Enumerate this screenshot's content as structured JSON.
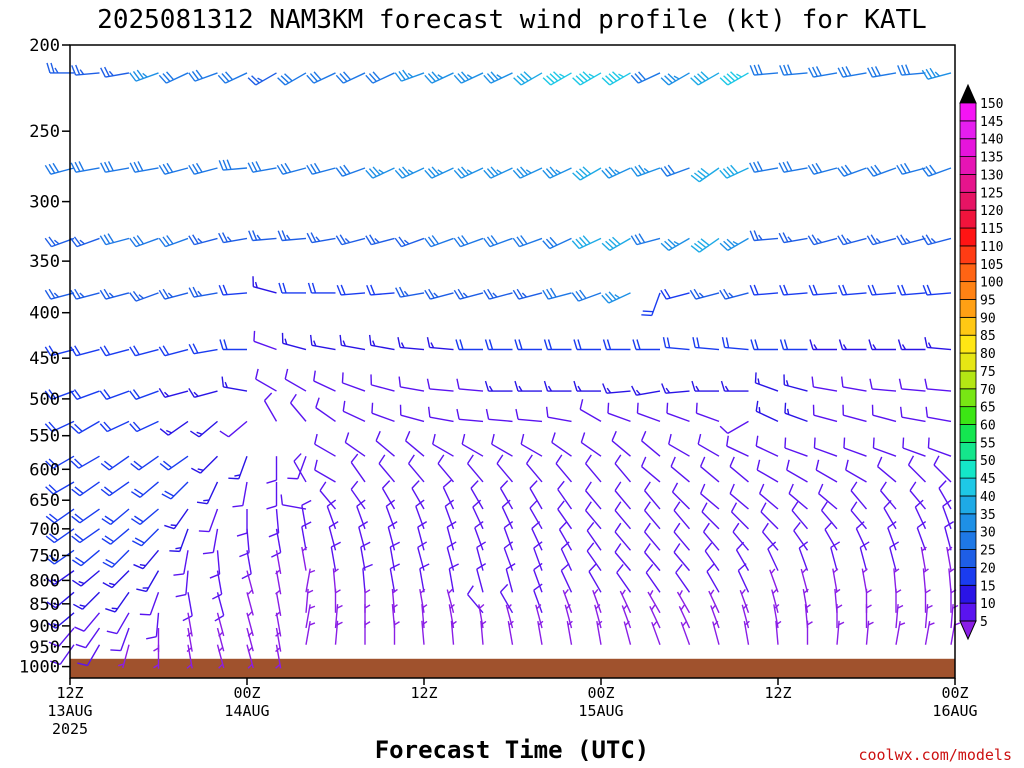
{
  "title": "2025081312 NAM3KM forecast wind profile (kt) for KATL",
  "credit": "coolwx.com/models",
  "chart_data": {
    "type": "wind-barb profile",
    "title": "2025081312 NAM3KM forecast wind profile (kt) for KATL",
    "xlabel": "Forecast Time (UTC)",
    "ylabel": "",
    "x_ticks": [
      {
        "hour": 0,
        "line1": "12Z",
        "line2": "13AUG",
        "line3": "2025"
      },
      {
        "hour": 12,
        "line1": "00Z",
        "line2": "14AUG",
        "line3": ""
      },
      {
        "hour": 24,
        "line1": "12Z",
        "line2": "",
        "line3": ""
      },
      {
        "hour": 36,
        "line1": "00Z",
        "line2": "15AUG",
        "line3": ""
      },
      {
        "hour": 48,
        "line1": "12Z",
        "line2": "",
        "line3": ""
      },
      {
        "hour": 60,
        "line1": "00Z",
        "line2": "16AUG",
        "line3": ""
      }
    ],
    "xlim_hours": [
      0,
      60
    ],
    "y_scale": "log",
    "ylim_hpa": [
      1030,
      200
    ],
    "y_ticks": [
      200,
      250,
      300,
      350,
      400,
      450,
      500,
      550,
      600,
      650,
      700,
      750,
      800,
      850,
      900,
      950,
      1000
    ],
    "ground_hpa": 980,
    "ground_color": "#a0522d",
    "colorbar": {
      "levels": [
        5,
        10,
        15,
        20,
        25,
        30,
        35,
        40,
        45,
        50,
        55,
        60,
        65,
        70,
        75,
        80,
        85,
        90,
        95,
        100,
        105,
        110,
        115,
        120,
        125,
        130,
        135,
        140,
        145,
        150
      ],
      "colors": [
        "#8a1ee6",
        "#5a14f0",
        "#2a14e6",
        "#1a3cf0",
        "#1e5ee6",
        "#1e78e6",
        "#1e90e6",
        "#1eaae6",
        "#1ec8e6",
        "#14e6c8",
        "#14e68c",
        "#14e650",
        "#3ce614",
        "#78e614",
        "#b4e614",
        "#e6e614",
        "#ffe614",
        "#ffc814",
        "#ffa014",
        "#ff8214",
        "#ff6414",
        "#ff3c14",
        "#ff1414",
        "#f0143c",
        "#e61464",
        "#e6148c",
        "#e614b4",
        "#e614dc",
        "#e61ef0",
        "#f514f5"
      ]
    },
    "profile_levels_hpa": [
      215,
      275,
      330,
      380,
      440,
      490,
      530,
      580,
      620,
      665,
      700,
      740,
      780,
      825,
      870,
      905,
      945
    ],
    "time_hours": [
      0,
      2,
      4,
      6,
      8,
      10,
      12,
      14,
      16,
      18,
      20,
      22,
      24,
      26,
      28,
      30,
      32,
      34,
      36,
      38,
      40,
      42,
      44,
      46,
      48,
      50,
      52,
      54,
      56,
      58,
      60
    ],
    "wind_speed_kt": [
      [
        25,
        25,
        25,
        35,
        30,
        30,
        30,
        25,
        30,
        30,
        30,
        30,
        35,
        35,
        35,
        35,
        40,
        45,
        45,
        45,
        30,
        35,
        40,
        45,
        30,
        30,
        30,
        30,
        30,
        30,
        35
      ],
      [
        30,
        30,
        30,
        30,
        30,
        30,
        30,
        30,
        30,
        30,
        30,
        35,
        35,
        35,
        35,
        35,
        35,
        35,
        40,
        35,
        35,
        30,
        40,
        40,
        30,
        30,
        30,
        30,
        30,
        30,
        30
      ],
      [
        25,
        25,
        30,
        30,
        30,
        25,
        25,
        25,
        25,
        25,
        25,
        25,
        25,
        30,
        30,
        30,
        30,
        30,
        40,
        40,
        30,
        35,
        40,
        35,
        25,
        25,
        25,
        25,
        25,
        25,
        25
      ],
      [
        25,
        25,
        25,
        25,
        25,
        25,
        20,
        15,
        20,
        20,
        20,
        20,
        25,
        25,
        25,
        25,
        25,
        30,
        30,
        35,
        20,
        20,
        25,
        25,
        20,
        20,
        20,
        20,
        20,
        20,
        20
      ],
      [
        20,
        20,
        20,
        20,
        20,
        20,
        20,
        10,
        15,
        15,
        15,
        15,
        15,
        15,
        20,
        20,
        20,
        20,
        20,
        20,
        20,
        20,
        20,
        20,
        20,
        20,
        15,
        15,
        15,
        15,
        15
      ],
      [
        20,
        20,
        20,
        20,
        15,
        15,
        15,
        10,
        10,
        10,
        10,
        10,
        10,
        10,
        10,
        15,
        15,
        15,
        15,
        15,
        15,
        15,
        15,
        15,
        15,
        15,
        10,
        10,
        10,
        10,
        10
      ],
      [
        20,
        20,
        20,
        20,
        15,
        15,
        10,
        10,
        10,
        10,
        10,
        10,
        10,
        10,
        10,
        10,
        10,
        10,
        10,
        10,
        10,
        10,
        10,
        10,
        15,
        15,
        10,
        10,
        10,
        10,
        10
      ],
      [
        20,
        20,
        20,
        20,
        20,
        15,
        15,
        10,
        10,
        10,
        10,
        10,
        10,
        10,
        10,
        10,
        10,
        10,
        10,
        10,
        10,
        10,
        10,
        10,
        10,
        10,
        10,
        10,
        10,
        10,
        10
      ],
      [
        20,
        20,
        20,
        20,
        20,
        15,
        10,
        10,
        10,
        10,
        10,
        10,
        10,
        10,
        10,
        10,
        10,
        10,
        10,
        10,
        10,
        10,
        10,
        10,
        10,
        10,
        10,
        10,
        10,
        10,
        10
      ],
      [
        20,
        20,
        20,
        20,
        15,
        10,
        10,
        10,
        10,
        10,
        10,
        10,
        10,
        10,
        10,
        10,
        10,
        10,
        10,
        10,
        10,
        10,
        10,
        10,
        10,
        10,
        10,
        10,
        10,
        10,
        10
      ],
      [
        20,
        20,
        20,
        20,
        15,
        10,
        10,
        10,
        10,
        10,
        10,
        10,
        10,
        10,
        10,
        10,
        10,
        10,
        10,
        10,
        10,
        10,
        10,
        10,
        10,
        10,
        10,
        10,
        10,
        10,
        10
      ],
      [
        20,
        20,
        20,
        15,
        10,
        10,
        10,
        5,
        10,
        10,
        10,
        10,
        10,
        10,
        10,
        10,
        10,
        10,
        10,
        10,
        10,
        10,
        10,
        10,
        10,
        10,
        10,
        10,
        10,
        10,
        10
      ],
      [
        15,
        15,
        15,
        15,
        10,
        10,
        5,
        5,
        5,
        10,
        10,
        10,
        10,
        10,
        10,
        10,
        10,
        10,
        10,
        10,
        10,
        10,
        10,
        10,
        10,
        10,
        10,
        10,
        10,
        5,
        5
      ],
      [
        15,
        15,
        15,
        10,
        10,
        10,
        5,
        5,
        5,
        5,
        10,
        10,
        10,
        10,
        10,
        10,
        10,
        10,
        10,
        10,
        10,
        10,
        10,
        10,
        5,
        5,
        5,
        5,
        5,
        5,
        5
      ],
      [
        15,
        10,
        10,
        10,
        5,
        5,
        5,
        5,
        5,
        5,
        5,
        5,
        5,
        5,
        10,
        10,
        10,
        5,
        5,
        5,
        5,
        5,
        5,
        5,
        5,
        5,
        5,
        5,
        5,
        5,
        5
      ],
      [
        10,
        10,
        10,
        5,
        5,
        5,
        5,
        5,
        5,
        5,
        5,
        5,
        5,
        5,
        5,
        5,
        5,
        5,
        5,
        5,
        5,
        5,
        5,
        5,
        5,
        5,
        5,
        5,
        5,
        5,
        5
      ],
      [
        10,
        10,
        5,
        5,
        5,
        5,
        5,
        5,
        5,
        5,
        5,
        5,
        5,
        5,
        5,
        5,
        5,
        5,
        5,
        5,
        5,
        5,
        5,
        5,
        5,
        5,
        5,
        5,
        5,
        5,
        5
      ]
    ],
    "wind_dir_deg": [
      [
        270,
        265,
        260,
        250,
        245,
        250,
        245,
        240,
        240,
        245,
        245,
        245,
        250,
        245,
        245,
        245,
        240,
        240,
        240,
        240,
        245,
        240,
        240,
        240,
        265,
        265,
        260,
        260,
        260,
        265,
        255
      ],
      [
        255,
        260,
        260,
        260,
        255,
        255,
        265,
        260,
        255,
        255,
        250,
        245,
        245,
        245,
        245,
        245,
        245,
        245,
        240,
        245,
        250,
        250,
        235,
        245,
        260,
        260,
        255,
        250,
        250,
        255,
        250
      ],
      [
        250,
        250,
        255,
        250,
        250,
        255,
        260,
        265,
        265,
        260,
        255,
        255,
        250,
        250,
        250,
        250,
        250,
        245,
        245,
        240,
        255,
        240,
        235,
        240,
        265,
        260,
        255,
        255,
        255,
        255,
        255
      ],
      [
        255,
        255,
        255,
        250,
        255,
        260,
        265,
        285,
        270,
        270,
        265,
        265,
        260,
        255,
        255,
        255,
        255,
        255,
        250,
        245,
        200,
        255,
        255,
        255,
        265,
        265,
        265,
        265,
        265,
        265,
        265
      ],
      [
        255,
        255,
        255,
        255,
        255,
        260,
        270,
        290,
        285,
        280,
        280,
        280,
        275,
        275,
        270,
        270,
        270,
        270,
        270,
        270,
        270,
        275,
        275,
        275,
        270,
        270,
        270,
        270,
        270,
        270,
        275
      ],
      [
        250,
        250,
        250,
        250,
        255,
        255,
        280,
        300,
        300,
        295,
        290,
        285,
        280,
        275,
        275,
        270,
        270,
        270,
        270,
        265,
        260,
        265,
        270,
        270,
        290,
        285,
        280,
        280,
        275,
        275,
        275
      ],
      [
        245,
        240,
        245,
        245,
        235,
        230,
        230,
        330,
        320,
        305,
        295,
        290,
        285,
        280,
        275,
        275,
        275,
        280,
        300,
        290,
        290,
        290,
        290,
        240,
        295,
        290,
        285,
        285,
        285,
        280,
        280
      ],
      [
        240,
        240,
        235,
        235,
        235,
        225,
        200,
        180,
        200,
        300,
        305,
        310,
        310,
        300,
        300,
        300,
        300,
        305,
        305,
        310,
        310,
        300,
        300,
        295,
        295,
        290,
        290,
        290,
        290,
        290,
        290
      ],
      [
        240,
        235,
        235,
        230,
        225,
        205,
        190,
        180,
        330,
        300,
        325,
        320,
        320,
        320,
        320,
        320,
        320,
        320,
        320,
        320,
        310,
        310,
        310,
        310,
        300,
        300,
        300,
        300,
        310,
        315,
        315
      ],
      [
        235,
        235,
        230,
        230,
        215,
        200,
        180,
        175,
        280,
        320,
        325,
        330,
        330,
        335,
        330,
        330,
        330,
        325,
        320,
        320,
        320,
        315,
        310,
        310,
        310,
        310,
        310,
        320,
        320,
        320,
        330
      ],
      [
        235,
        235,
        230,
        225,
        200,
        190,
        175,
        170,
        350,
        340,
        340,
        340,
        340,
        340,
        335,
        335,
        330,
        325,
        320,
        320,
        320,
        320,
        315,
        315,
        315,
        320,
        320,
        320,
        330,
        335,
        340
      ],
      [
        235,
        230,
        225,
        220,
        190,
        175,
        170,
        170,
        350,
        345,
        345,
        345,
        345,
        345,
        340,
        340,
        335,
        330,
        325,
        320,
        320,
        320,
        320,
        320,
        320,
        325,
        330,
        335,
        340,
        340,
        345
      ],
      [
        235,
        230,
        225,
        210,
        185,
        170,
        165,
        170,
        350,
        350,
        350,
        350,
        345,
        345,
        345,
        340,
        340,
        335,
        325,
        320,
        320,
        320,
        325,
        330,
        335,
        340,
        345,
        345,
        345,
        350,
        350
      ],
      [
        230,
        225,
        215,
        200,
        170,
        165,
        165,
        170,
        10,
        355,
        355,
        350,
        350,
        350,
        345,
        345,
        340,
        335,
        330,
        325,
        325,
        325,
        330,
        335,
        340,
        345,
        350,
        350,
        355,
        355,
        355
      ],
      [
        230,
        220,
        210,
        185,
        170,
        165,
        165,
        170,
        5,
        0,
        0,
        355,
        350,
        345,
        320,
        330,
        340,
        340,
        340,
        335,
        330,
        330,
        335,
        340,
        345,
        350,
        355,
        0,
        0,
        0,
        0
      ],
      [
        220,
        215,
        200,
        180,
        170,
        165,
        165,
        170,
        10,
        5,
        0,
        355,
        355,
        350,
        350,
        345,
        345,
        345,
        345,
        340,
        335,
        335,
        340,
        345,
        350,
        355,
        0,
        0,
        5,
        5,
        5
      ],
      [
        215,
        210,
        195,
        180,
        170,
        165,
        165,
        170,
        10,
        5,
        0,
        0,
        355,
        355,
        355,
        350,
        350,
        350,
        350,
        345,
        340,
        340,
        345,
        350,
        355,
        0,
        5,
        5,
        10,
        10,
        10
      ]
    ]
  }
}
